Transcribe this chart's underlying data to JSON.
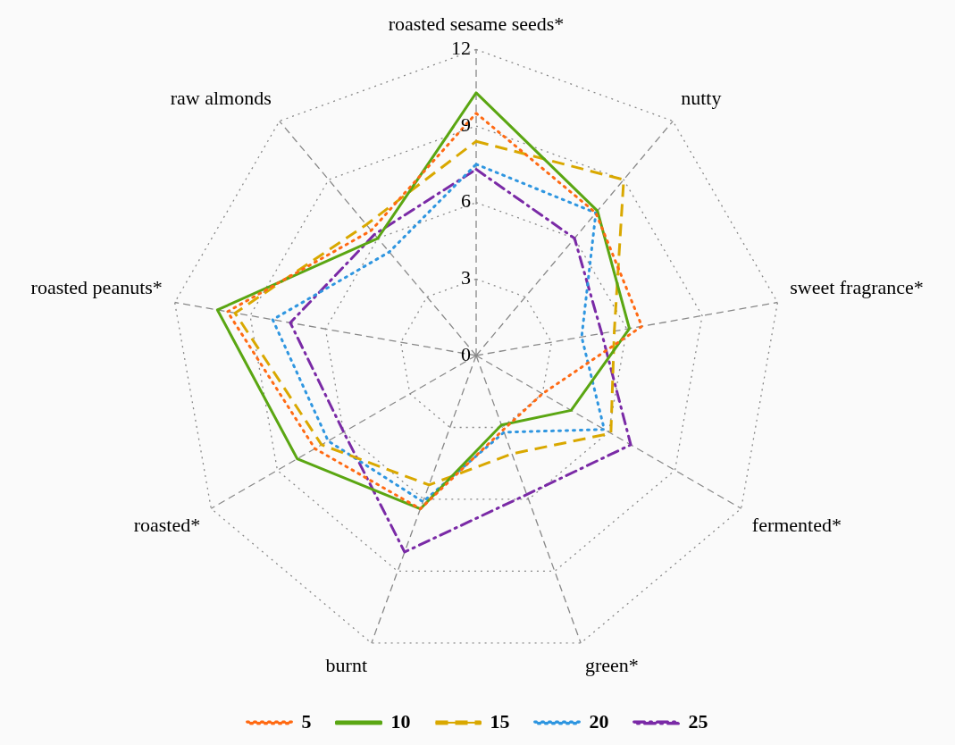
{
  "chart_data": {
    "type": "radar",
    "categories": [
      "roasted sesame seeds*",
      "nutty",
      "sweet fragrance*",
      "fermented*",
      "green*",
      "burnt",
      "roasted*",
      "roasted peanuts*",
      "raw almonds"
    ],
    "ylim": [
      0,
      12
    ],
    "yticks": [
      0,
      3,
      6,
      9,
      12
    ],
    "grid": true,
    "legend": "bottom",
    "marker": "none",
    "series": [
      {
        "name": "5",
        "color": "#ff6a13",
        "line_style": "dotted",
        "values": [
          9.5,
          7.3,
          6.6,
          3.0,
          3.1,
          6.4,
          7.3,
          9.9,
          6.4
        ]
      },
      {
        "name": "10",
        "color": "#5aa612",
        "line_style": "solid",
        "values": [
          10.3,
          7.4,
          6.1,
          4.3,
          2.9,
          6.4,
          8.1,
          10.3,
          6.0
        ]
      },
      {
        "name": "15",
        "color": "#d9a800",
        "line_style": "dashed",
        "values": [
          8.4,
          9.0,
          5.5,
          6.1,
          4.1,
          5.4,
          7.0,
          9.6,
          6.7
        ]
      },
      {
        "name": "20",
        "color": "#2f96e0",
        "line_style": "dotted",
        "values": [
          7.5,
          7.3,
          4.2,
          5.8,
          3.2,
          6.1,
          6.7,
          8.1,
          5.3
        ]
      },
      {
        "name": "25",
        "color": "#7a2aa6",
        "line_style": "dashdot",
        "values": [
          7.3,
          6.0,
          5.0,
          7.0,
          5.8,
          8.2,
          6.0,
          7.4,
          6.2
        ]
      }
    ]
  }
}
